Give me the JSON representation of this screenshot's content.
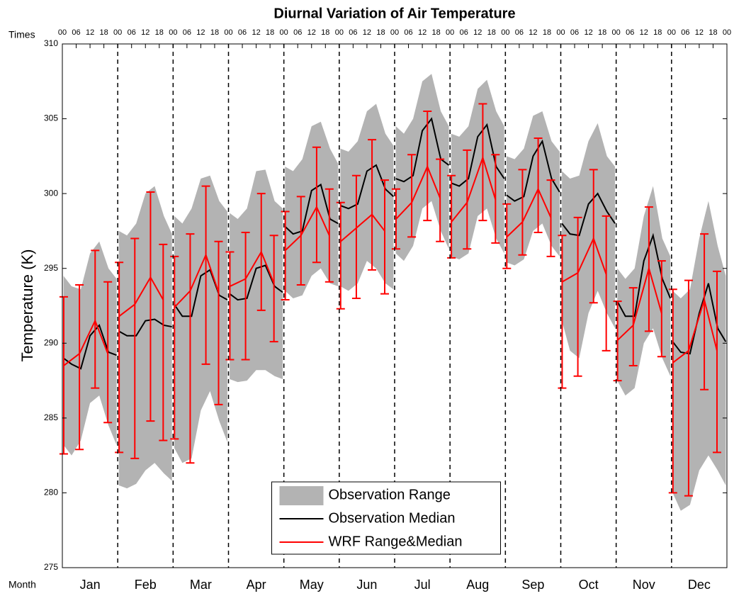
{
  "chart_data": {
    "type": "line",
    "title": "Diurnal Variation of Air Temperature",
    "ylabel": "Temperature (K)",
    "xlabel": "Month",
    "x2label": "Times",
    "categories": [
      "Jan",
      "Feb",
      "Mar",
      "Apr",
      "May",
      "Jun",
      "Jul",
      "Aug",
      "Sep",
      "Oct",
      "Nov",
      "Dec"
    ],
    "xlim": [
      0,
      288
    ],
    "ylim": [
      275,
      310
    ],
    "yticks": [
      275,
      280,
      285,
      290,
      295,
      300,
      305,
      310
    ],
    "x2ticks": [
      {
        "value": 0,
        "label": "00"
      },
      {
        "value": 6,
        "label": "06"
      },
      {
        "value": 12,
        "label": "12"
      },
      {
        "value": 18,
        "label": "18"
      },
      {
        "value": 24,
        "label": "00"
      },
      {
        "value": 30,
        "label": "06"
      },
      {
        "value": 36,
        "label": "12"
      },
      {
        "value": 42,
        "label": "18"
      },
      {
        "value": 48,
        "label": "00"
      },
      {
        "value": 54,
        "label": "06"
      },
      {
        "value": 60,
        "label": "12"
      },
      {
        "value": 66,
        "label": "18"
      },
      {
        "value": 72,
        "label": "00"
      },
      {
        "value": 78,
        "label": "06"
      },
      {
        "value": 84,
        "label": "12"
      },
      {
        "value": 90,
        "label": "18"
      },
      {
        "value": 96,
        "label": "00"
      },
      {
        "value": 102,
        "label": "06"
      },
      {
        "value": 108,
        "label": "12"
      },
      {
        "value": 114,
        "label": "18"
      },
      {
        "value": 120,
        "label": "00"
      },
      {
        "value": 126,
        "label": "06"
      },
      {
        "value": 132,
        "label": "12"
      },
      {
        "value": 138,
        "label": "18"
      },
      {
        "value": 144,
        "label": "00"
      },
      {
        "value": 150,
        "label": "06"
      },
      {
        "value": 156,
        "label": "12"
      },
      {
        "value": 162,
        "label": "18"
      },
      {
        "value": 168,
        "label": "00"
      },
      {
        "value": 174,
        "label": "06"
      },
      {
        "value": 180,
        "label": "12"
      },
      {
        "value": 186,
        "label": "18"
      },
      {
        "value": 192,
        "label": "00"
      },
      {
        "value": 198,
        "label": "06"
      },
      {
        "value": 204,
        "label": "12"
      },
      {
        "value": 210,
        "label": "18"
      },
      {
        "value": 216,
        "label": "00"
      },
      {
        "value": 222,
        "label": "06"
      },
      {
        "value": 228,
        "label": "12"
      },
      {
        "value": 234,
        "label": "18"
      },
      {
        "value": 240,
        "label": "00"
      },
      {
        "value": 246,
        "label": "06"
      },
      {
        "value": 252,
        "label": "12"
      },
      {
        "value": 258,
        "label": "18"
      },
      {
        "value": 264,
        "label": "00"
      },
      {
        "value": 270,
        "label": "06"
      },
      {
        "value": 276,
        "label": "12"
      },
      {
        "value": 282,
        "label": "18"
      },
      {
        "value": 288,
        "label": "00"
      }
    ],
    "legend": "lower center",
    "series": [
      {
        "name": "Observation Range",
        "kind": "area",
        "color": "#b3b3b3",
        "x": [
          0.5,
          4,
          8,
          12,
          16,
          20,
          23.5,
          24,
          24.5,
          28,
          32,
          36,
          40,
          44,
          47.5,
          48,
          48.5,
          52,
          56,
          60,
          64,
          68,
          71.5,
          72,
          72.5,
          76,
          80,
          84,
          88,
          92,
          95.5,
          96,
          96.5,
          100,
          104,
          108,
          112,
          116,
          119.5,
          120,
          120.5,
          124,
          128,
          132,
          136,
          140,
          143.5,
          144,
          144.5,
          148,
          152,
          156,
          160,
          164,
          167.5,
          168,
          168.5,
          172,
          176,
          180,
          184,
          188,
          191.5,
          192,
          192.5,
          196,
          200,
          204,
          208,
          212,
          215.5,
          216,
          216.5,
          220,
          224,
          228,
          232,
          236,
          239.5,
          240,
          240.5,
          244,
          248,
          252,
          256,
          260,
          263.5,
          264,
          264.5,
          268,
          272,
          276,
          280,
          284,
          287.5
        ],
        "lower": [
          283.2,
          282.5,
          283.5,
          286.0,
          286.5,
          284.5,
          283.2,
          null,
          280.5,
          280.3,
          280.6,
          281.5,
          282.0,
          281.3,
          280.8,
          null,
          283.0,
          282.0,
          282.3,
          285.5,
          286.8,
          284.8,
          283.4,
          null,
          287.6,
          287.4,
          287.5,
          288.2,
          288.2,
          287.8,
          287.6,
          null,
          293.5,
          293.0,
          293.2,
          294.5,
          295.0,
          294.0,
          293.8,
          null,
          293.8,
          293.5,
          294.0,
          295.5,
          295.0,
          294.0,
          293.6,
          null,
          296.0,
          295.5,
          296.5,
          299.0,
          299.5,
          297.5,
          296.3,
          null,
          295.8,
          295.6,
          296.0,
          298.5,
          299.0,
          297.0,
          296.0,
          null,
          295.4,
          295.2,
          295.6,
          297.5,
          298.0,
          296.5,
          295.8,
          null,
          291.5,
          289.5,
          289.0,
          292.0,
          293.5,
          292.0,
          291.0,
          null,
          287.5,
          286.5,
          287.0,
          290.0,
          291.0,
          289.0,
          287.8,
          null,
          280.0,
          278.8,
          279.2,
          281.5,
          282.5,
          281.5,
          280.5
        ],
        "upper": [
          294.5,
          293.8,
          293.6,
          296.0,
          296.8,
          295.0,
          294.3,
          null,
          297.5,
          297.2,
          298.0,
          300.0,
          300.5,
          298.5,
          297.3,
          null,
          298.5,
          298.0,
          299.0,
          301.0,
          301.2,
          299.5,
          298.8,
          null,
          298.7,
          298.3,
          299.0,
          301.5,
          301.6,
          299.5,
          299.0,
          null,
          301.8,
          301.5,
          302.3,
          304.5,
          304.8,
          303.0,
          302.0,
          null,
          303.0,
          302.8,
          303.5,
          305.5,
          306.0,
          304.0,
          303.2,
          null,
          304.5,
          304.0,
          305.0,
          307.5,
          308.0,
          305.5,
          304.5,
          null,
          304.0,
          303.8,
          304.5,
          307.0,
          307.6,
          305.5,
          304.5,
          null,
          302.5,
          302.3,
          303.0,
          305.2,
          305.5,
          303.5,
          302.8,
          null,
          301.5,
          301.0,
          301.2,
          303.5,
          304.7,
          302.5,
          301.8,
          null,
          295.0,
          294.3,
          295.0,
          298.5,
          300.5,
          297.0,
          295.8,
          null,
          293.5,
          293.0,
          293.6,
          297.0,
          299.5,
          296.5,
          294.5
        ]
      },
      {
        "name": "Observation Median",
        "kind": "line",
        "color": "#000000",
        "x": [
          0.5,
          4,
          8,
          12,
          16,
          20,
          23.5,
          24,
          24.5,
          28,
          32,
          36,
          40,
          44,
          47.5,
          48,
          48.5,
          52,
          56,
          60,
          64,
          68,
          71.5,
          72,
          72.5,
          76,
          80,
          84,
          88,
          92,
          95.5,
          96,
          96.5,
          100,
          104,
          108,
          112,
          116,
          119.5,
          120,
          120.5,
          124,
          128,
          132,
          136,
          140,
          143.5,
          144,
          144.5,
          148,
          152,
          156,
          160,
          164,
          167.5,
          168,
          168.5,
          172,
          176,
          180,
          184,
          188,
          191.5,
          192,
          192.5,
          196,
          200,
          204,
          208,
          212,
          215.5,
          216,
          216.5,
          220,
          224,
          228,
          232,
          236,
          239.5,
          240,
          240.5,
          244,
          248,
          252,
          256,
          260,
          263.5,
          264,
          264.5,
          268,
          272,
          276,
          280,
          284,
          287.5
        ],
        "values": [
          289.0,
          288.6,
          288.3,
          290.5,
          291.2,
          289.4,
          289.2,
          null,
          290.8,
          290.5,
          290.5,
          291.5,
          291.6,
          291.2,
          291.1,
          null,
          292.6,
          291.8,
          291.8,
          294.5,
          294.9,
          293.2,
          292.9,
          null,
          293.3,
          292.9,
          293.0,
          295.0,
          295.2,
          293.8,
          293.4,
          null,
          297.8,
          297.3,
          297.5,
          300.2,
          300.6,
          298.3,
          298.0,
          null,
          299.2,
          299.0,
          299.3,
          301.5,
          301.9,
          300.3,
          299.8,
          null,
          301.0,
          300.8,
          301.2,
          304.2,
          305.0,
          302.3,
          301.9,
          null,
          300.7,
          300.5,
          301.0,
          303.8,
          304.6,
          301.8,
          301.0,
          null,
          299.9,
          299.5,
          299.8,
          302.5,
          303.5,
          301.0,
          300.1,
          null,
          298.0,
          297.3,
          297.2,
          299.3,
          300.0,
          298.8,
          298.0,
          null,
          292.8,
          291.8,
          291.8,
          295.5,
          297.2,
          294.3,
          293.0,
          null,
          290.1,
          289.4,
          289.3,
          292.0,
          294.0,
          291.0,
          290.1
        ]
      },
      {
        "name": "WRF Range&Median",
        "kind": "errorline",
        "color": "#ff0000",
        "x": [
          0.6,
          7.4,
          14.2,
          19.7,
          24,
          24.6,
          31.4,
          38.2,
          43.7,
          48,
          48.6,
          55.4,
          62.2,
          67.7,
          72,
          72.6,
          79.4,
          86.2,
          91.7,
          96,
          96.6,
          103.4,
          110.2,
          115.7,
          120,
          120.6,
          127.4,
          134.2,
          139.7,
          144,
          144.6,
          151.4,
          158.2,
          163.7,
          168,
          168.6,
          175.4,
          182.2,
          187.7,
          192,
          192.6,
          199.4,
          206.2,
          211.7,
          216,
          216.6,
          223.4,
          230.2,
          235.7,
          240,
          240.6,
          247.4,
          254.2,
          259.7,
          264,
          264.6,
          271.4,
          278.2,
          283.7
        ],
        "values": [
          288.5,
          289.3,
          291.5,
          289.3,
          null,
          291.8,
          292.6,
          294.4,
          292.9,
          null,
          292.4,
          293.5,
          295.9,
          293.4,
          null,
          293.8,
          294.3,
          296.1,
          294.0,
          null,
          296.2,
          297.2,
          299.1,
          297.2,
          null,
          296.8,
          297.7,
          298.6,
          297.5,
          null,
          298.3,
          299.4,
          301.8,
          299.7,
          null,
          298.1,
          299.4,
          302.4,
          299.6,
          null,
          297.1,
          298.1,
          300.3,
          298.4,
          null,
          294.1,
          294.7,
          297.0,
          294.6,
          null,
          290.2,
          291.2,
          295.0,
          292.0,
          null,
          288.7,
          289.5,
          292.9,
          289.5
        ],
        "lower": [
          282.6,
          282.9,
          287.0,
          284.7,
          null,
          282.7,
          282.3,
          284.8,
          283.5,
          null,
          283.6,
          282.0,
          288.6,
          285.9,
          null,
          288.9,
          288.9,
          292.2,
          290.1,
          null,
          292.9,
          293.9,
          295.4,
          294.1,
          null,
          292.3,
          293.0,
          294.9,
          293.3,
          null,
          296.3,
          297.1,
          298.2,
          296.8,
          null,
          295.7,
          296.3,
          298.2,
          296.7,
          null,
          295.0,
          295.9,
          297.4,
          295.8,
          null,
          287.0,
          287.8,
          292.7,
          289.5,
          null,
          287.5,
          288.5,
          290.8,
          289.1,
          null,
          280.0,
          279.8,
          286.9,
          282.7
        ],
        "upper": [
          293.1,
          293.9,
          296.2,
          294.1,
          null,
          295.4,
          297.0,
          300.1,
          296.6,
          null,
          295.8,
          297.3,
          300.5,
          296.8,
          null,
          296.1,
          297.4,
          300.0,
          297.2,
          null,
          298.8,
          299.8,
          303.1,
          300.3,
          null,
          299.4,
          301.2,
          303.6,
          300.9,
          null,
          300.3,
          302.6,
          305.5,
          302.3,
          null,
          301.2,
          302.9,
          306.0,
          302.6,
          null,
          299.3,
          301.6,
          303.7,
          300.9,
          null,
          297.2,
          298.4,
          301.6,
          298.5,
          null,
          292.8,
          293.7,
          299.1,
          295.5,
          null,
          293.6,
          294.2,
          297.3,
          294.8
        ]
      }
    ]
  }
}
